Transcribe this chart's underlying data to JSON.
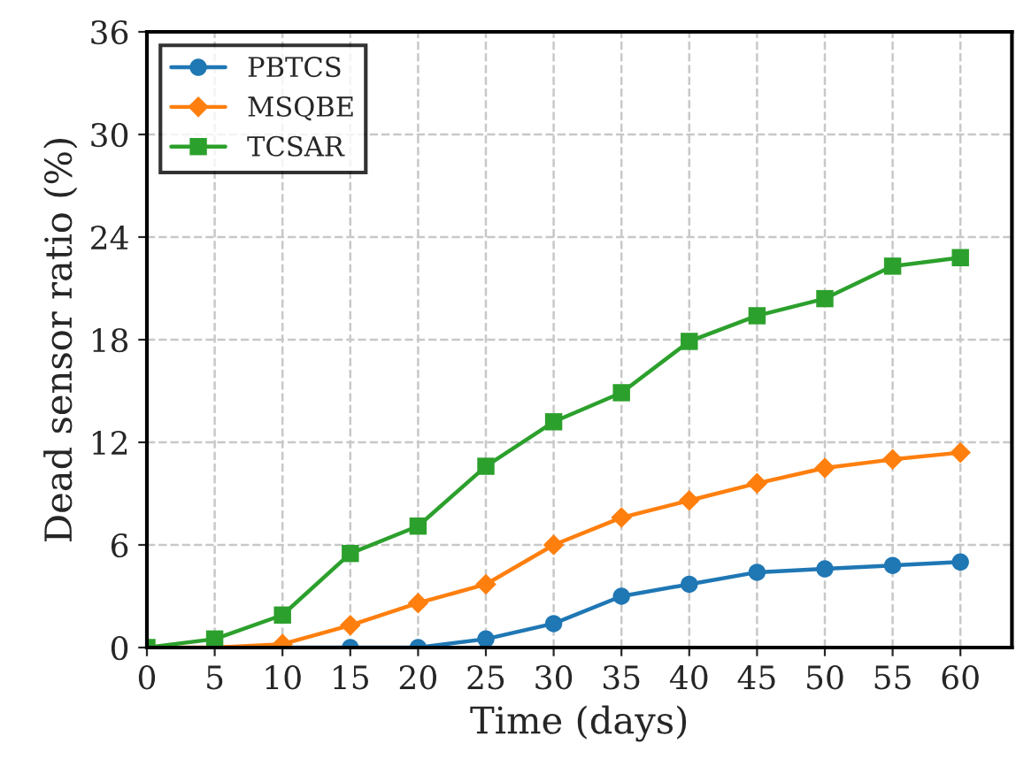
{
  "chart_data": {
    "type": "line",
    "xlabel": "Time (days)",
    "ylabel": "Dead sensor ratio (%)",
    "x": [
      0,
      5,
      10,
      15,
      20,
      25,
      30,
      35,
      40,
      45,
      50,
      55,
      60
    ],
    "series": [
      {
        "name": "PBTCS",
        "color": "#1f77b4",
        "marker": "circle",
        "values": [
          null,
          null,
          0,
          0,
          0,
          0.5,
          1.4,
          3.0,
          3.7,
          4.4,
          4.6,
          4.8,
          5.0
        ]
      },
      {
        "name": "MSQBE",
        "color": "#ff7f0e",
        "marker": "diamond",
        "values": [
          0,
          0,
          0.2,
          1.3,
          2.6,
          3.7,
          6.0,
          7.6,
          8.6,
          9.6,
          10.5,
          11.0,
          11.4
        ]
      },
      {
        "name": "TCSAR",
        "color": "#2ca02c",
        "marker": "square",
        "values": [
          0,
          0.5,
          1.9,
          5.5,
          7.1,
          10.6,
          13.2,
          14.9,
          17.9,
          19.4,
          20.4,
          22.3,
          22.8
        ]
      }
    ],
    "xlim": [
      0,
      63.8
    ],
    "ylim": [
      0,
      36
    ],
    "xticks": [
      0,
      5,
      10,
      15,
      20,
      25,
      30,
      35,
      40,
      45,
      50,
      55,
      60
    ],
    "yticks": [
      0,
      6,
      12,
      18,
      24,
      30,
      36
    ],
    "grid": true,
    "legend": "top left",
    "line_style": "solid"
  }
}
